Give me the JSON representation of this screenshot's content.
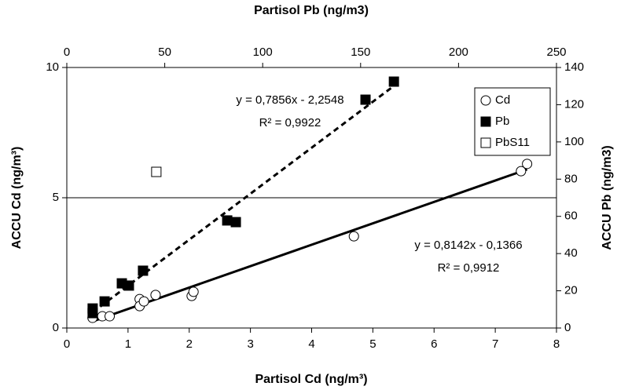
{
  "chart_data": {
    "type": "scatter",
    "xlabel": "Partisol Cd (ng/m³)",
    "ylabel": "ACCU Cd (ng/m³)",
    "x2label": "Partisol Pb (ng/m3)",
    "y2label": "ACCU Pb (ng/m3)",
    "xlim": [
      0,
      8
    ],
    "xticks": [
      0,
      1,
      2,
      3,
      4,
      5,
      6,
      7,
      8
    ],
    "ylim": [
      0,
      10
    ],
    "yticks": [
      0,
      5,
      10
    ],
    "x2lim": [
      0,
      250
    ],
    "x2ticks": [
      0,
      50,
      100,
      150,
      200,
      250
    ],
    "y2lim": [
      0,
      140
    ],
    "y2ticks": [
      0,
      20,
      40,
      60,
      80,
      100,
      120,
      140
    ],
    "grid": true,
    "legend": "upper right",
    "series": [
      {
        "name": "Cd",
        "color": "#000000",
        "marker": "circle",
        "filled": false,
        "trendline": "solid",
        "x": [
          0.42,
          0.58,
          0.7,
          1.19,
          1.19,
          1.26,
          1.45,
          2.04,
          2.07,
          4.69,
          7.42,
          7.52
        ],
        "values": [
          0.39,
          0.45,
          0.45,
          1.11,
          0.84,
          1.02,
          1.27,
          1.23,
          1.39,
          3.52,
          6.02,
          6.3
        ]
      },
      {
        "name": "Pb",
        "color": "#000000",
        "marker": "square",
        "filled": true,
        "axis": "y2",
        "trendline": "dashed",
        "x": [
          13.2,
          13.2,
          19.3,
          28.1,
          31.7,
          38.9,
          81.9,
          86.3,
          152.5,
          167
        ],
        "values": [
          10.5,
          8,
          14.3,
          24,
          22.8,
          30.8,
          57.8,
          56.9,
          122.7,
          132.4
        ]
      },
      {
        "name": "PbS11",
        "color": "#000000",
        "marker": "square",
        "filled": false,
        "axis": "y2",
        "x": [
          45.7
        ],
        "values": [
          83.9
        ]
      }
    ],
    "annotations": [
      "y = 0,7856x - 2,2548",
      "R² = 0,9922",
      "y = 0,8142x - 0,1366",
      "R² = 0,9912"
    ]
  }
}
